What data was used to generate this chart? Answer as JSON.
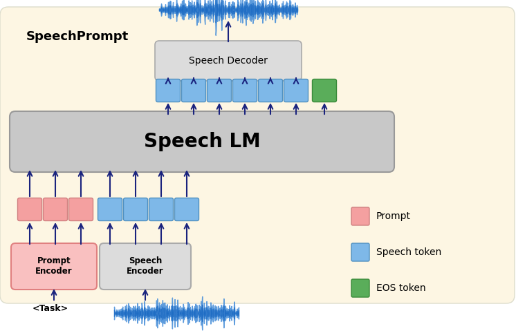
{
  "bg_color": "#FDF6E3",
  "bg_outer": "#FFFFFF",
  "title": "SpeechPrompt",
  "speech_lm_label": "Speech LM",
  "speech_decoder_label": "Speech Decoder",
  "prompt_encoder_label": "Prompt\nEncoder",
  "speech_encoder_label": "Speech\nEncoder",
  "task_label": "<Task>",
  "legend_labels": [
    "Prompt",
    "Speech token",
    "EOS token"
  ],
  "prompt_color": "#F4A0A0",
  "speech_token_color": "#7EB8E8",
  "eos_color": "#5AAD5A",
  "arrow_color": "#1A237E",
  "prompt_encoder_fill": "#F9C0C0",
  "prompt_encoder_edge": "#E08080",
  "speech_encoder_fill": "#DCDCDC",
  "speech_encoder_edge": "#AAAAAA",
  "lm_fill": "#C8C8C8",
  "lm_edge": "#999999",
  "decoder_fill": "#DCDCDC",
  "decoder_edge": "#AAAAAA",
  "waveform_color": "#1565C0",
  "waveform_fill": "#4A90D9"
}
